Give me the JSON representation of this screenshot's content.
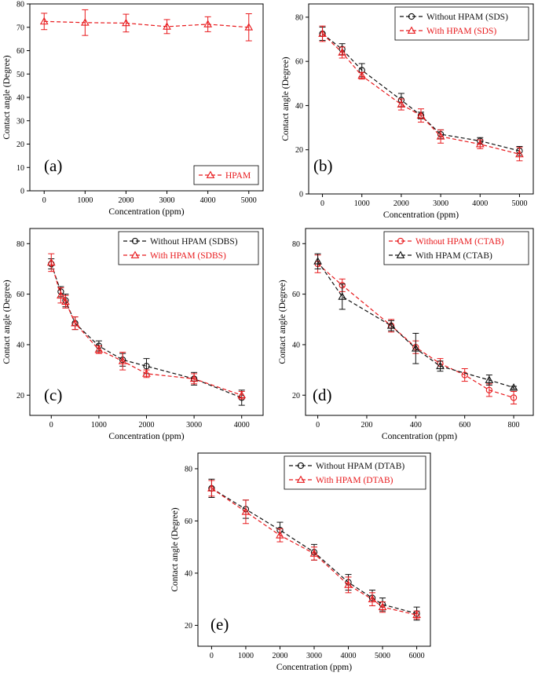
{
  "chart_data": [
    {
      "type": "line",
      "panel_label": "(a)",
      "xlabel": "Concentration (ppm)",
      "ylabel": "Contact angle (Degree)",
      "xlim": [
        -350,
        5350
      ],
      "ylim": [
        0,
        80
      ],
      "xticks": [
        0,
        1000,
        2000,
        3000,
        4000,
        5000
      ],
      "yticks": [
        0,
        10,
        20,
        30,
        40,
        50,
        60,
        70,
        80
      ],
      "legend_position": "bottom-right",
      "series": [
        {
          "name": "HPAM",
          "color": "#e8191c",
          "marker": "triangle",
          "x": [
            0,
            1000,
            2000,
            3000,
            4000,
            5000
          ],
          "y": [
            72.5,
            72.0,
            71.8,
            70.3,
            71.3,
            70.0
          ],
          "err": [
            3.5,
            5.5,
            3.8,
            3.0,
            3.2,
            5.8
          ]
        }
      ]
    },
    {
      "type": "line",
      "panel_label": "(b)",
      "xlabel": "Concentration (ppm)",
      "ylabel": "Contact angle (Degree)",
      "xlim": [
        -350,
        5350
      ],
      "ylim": [
        0,
        86
      ],
      "xticks": [
        0,
        1000,
        2000,
        3000,
        4000,
        5000
      ],
      "yticks": [
        0,
        20,
        40,
        60,
        80
      ],
      "legend_position": "top-right",
      "series": [
        {
          "name": "Without HPAM (SDS)",
          "color": "#111111",
          "marker": "circle",
          "x": [
            0,
            500,
            1000,
            2000,
            2500,
            3000,
            4000,
            5000
          ],
          "y": [
            72.5,
            65.5,
            56.0,
            42.5,
            35.5,
            27.0,
            24.0,
            19.5
          ],
          "err": [
            3.0,
            2.5,
            3.0,
            3.0,
            1.5,
            2.0,
            1.5,
            2.0
          ]
        },
        {
          "name": "With HPAM (SDS)",
          "color": "#e8191c",
          "marker": "triangle",
          "x": [
            0,
            500,
            1000,
            2000,
            2500,
            3000,
            4000,
            5000
          ],
          "y": [
            72.5,
            64.0,
            53.5,
            40.5,
            35.5,
            26.0,
            22.5,
            18.0
          ],
          "err": [
            3.5,
            2.5,
            1.5,
            2.5,
            3.0,
            3.0,
            2.0,
            3.0
          ]
        }
      ]
    },
    {
      "type": "line",
      "panel_label": "(c)",
      "xlabel": "Concentration (ppm)",
      "ylabel": "Contact angle (Degree)",
      "xlim": [
        -450,
        4450
      ],
      "ylim": [
        12,
        86
      ],
      "xticks": [
        0,
        1000,
        2000,
        3000,
        4000
      ],
      "yticks": [
        20,
        40,
        60,
        80
      ],
      "legend_position": "top-right",
      "series": [
        {
          "name": "Without HPAM (SDBS)",
          "color": "#111111",
          "marker": "circle",
          "x": [
            0,
            200,
            300,
            500,
            1000,
            1500,
            2000,
            3000,
            4000
          ],
          "y": [
            72.0,
            61.0,
            57.5,
            48.5,
            39.5,
            34.0,
            31.5,
            26.5,
            19.0
          ],
          "err": [
            2.0,
            2.0,
            2.5,
            2.5,
            2.0,
            2.5,
            3.0,
            2.5,
            3.0
          ]
        },
        {
          "name": "With HPAM (SDBS)",
          "color": "#e8191c",
          "marker": "triangle",
          "x": [
            0,
            200,
            300,
            500,
            1000,
            1500,
            2000,
            3000,
            4000
          ],
          "y": [
            72.5,
            59.5,
            57.0,
            48.5,
            38.0,
            33.5,
            28.5,
            26.5,
            20.0
          ],
          "err": [
            3.5,
            3.0,
            2.5,
            2.5,
            1.5,
            3.5,
            1.5,
            2.0,
            1.5
          ]
        }
      ]
    },
    {
      "type": "line",
      "panel_label": "(d)",
      "xlabel": "Concentration (ppm)",
      "ylabel": "Contact angle (Degree)",
      "xlim": [
        -50,
        880
      ],
      "ylim": [
        12,
        86
      ],
      "xticks": [
        0,
        200,
        400,
        600,
        800
      ],
      "yticks": [
        20,
        40,
        60,
        80
      ],
      "legend_position": "top-right",
      "series": [
        {
          "name": "Without HPAM (CTAB)",
          "color": "#e8191c",
          "marker": "circle",
          "x": [
            0,
            100,
            300,
            400,
            500,
            600,
            700,
            800
          ],
          "y": [
            72.0,
            63.5,
            47.5,
            39.0,
            32.5,
            28.0,
            22.0,
            19.0
          ],
          "err": [
            3.5,
            2.5,
            2.5,
            2.5,
            2.0,
            2.5,
            2.5,
            2.5
          ]
        },
        {
          "name": "With HPAM (CTAB)",
          "color": "#111111",
          "marker": "triangle",
          "x": [
            0,
            100,
            300,
            400,
            500,
            700,
            800
          ],
          "y": [
            73.0,
            59.0,
            47.5,
            38.5,
            31.5,
            26.0,
            23.0
          ],
          "err": [
            3.0,
            5.0,
            2.0,
            6.0,
            2.0,
            2.0,
            0.5
          ]
        }
      ]
    },
    {
      "type": "line",
      "panel_label": "(e)",
      "xlabel": "Concentration (ppm)",
      "ylabel": "Contact angle (Degree)",
      "xlim": [
        -400,
        6400
      ],
      "ylim": [
        12,
        86
      ],
      "xticks": [
        0,
        1000,
        2000,
        3000,
        4000,
        5000,
        6000
      ],
      "yticks": [
        20,
        40,
        60,
        80
      ],
      "legend_position": "top-right",
      "series": [
        {
          "name": "Without HPAM (DTAB)",
          "color": "#111111",
          "marker": "circle",
          "x": [
            0,
            1000,
            2000,
            3000,
            4000,
            4700,
            5000,
            6000
          ],
          "y": [
            72.5,
            64.5,
            56.5,
            48.0,
            36.5,
            30.5,
            28.0,
            24.5
          ],
          "err": [
            3.5,
            3.5,
            3.0,
            3.0,
            3.0,
            3.0,
            2.5,
            2.5
          ]
        },
        {
          "name": "With HPAM (DTAB)",
          "color": "#e8191c",
          "marker": "triangle",
          "x": [
            0,
            1000,
            2000,
            3000,
            4000,
            4700,
            5000,
            6000
          ],
          "y": [
            72.5,
            63.5,
            54.5,
            47.5,
            35.5,
            30.0,
            27.0,
            24.0
          ],
          "err": [
            3.0,
            4.5,
            2.5,
            2.5,
            3.0,
            2.5,
            2.0,
            1.5
          ]
        }
      ]
    }
  ]
}
